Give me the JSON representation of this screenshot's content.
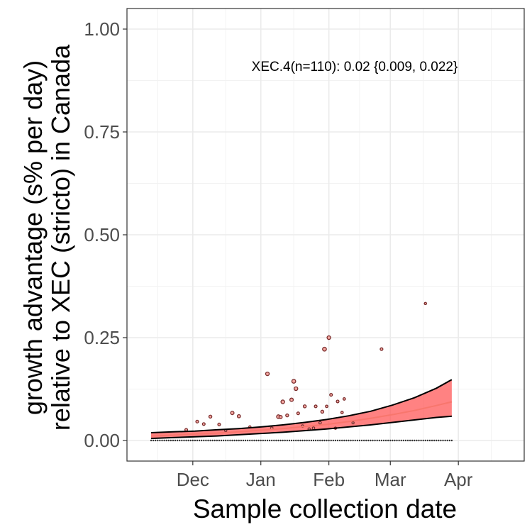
{
  "chart_data": {
    "type": "scatter",
    "title": "",
    "xlabel": "Sample collection date",
    "ylabel_lines": [
      "growth advantage (s% per day)",
      "relative to XEC (stricto) in Canada"
    ],
    "x_ticks": [
      {
        "label": "Dec",
        "date": "2024-12-01"
      },
      {
        "label": "Jan",
        "date": "2025-01-01"
      },
      {
        "label": "Feb",
        "date": "2025-02-01"
      },
      {
        "label": "Mar",
        "date": "2025-03-01"
      },
      {
        "label": "Apr",
        "date": "2025-04-01"
      }
    ],
    "xlim": [
      "2024-11-01",
      "2025-05-01"
    ],
    "ylim": [
      -0.05,
      1.05
    ],
    "y_ticks": [
      {
        "label": "0.00",
        "value": 0.0
      },
      {
        "label": "0.25",
        "value": 0.25
      },
      {
        "label": "0.50",
        "value": 0.5
      },
      {
        "label": "0.75",
        "value": 0.75
      },
      {
        "label": "1.00",
        "value": 1.0
      }
    ],
    "grid": true,
    "annotation": "XEC.4(n=110): 0.02 {0.009, 0.022}",
    "colors": {
      "fit": "#f8766d",
      "band": "#ff4d4d",
      "point_edge": "#7a2e2e",
      "point_fill": "#f4a6a0"
    },
    "fit_line": [
      {
        "date": "2024-11-12",
        "y": 0.011
      },
      {
        "date": "2024-11-22",
        "y": 0.013
      },
      {
        "date": "2024-12-02",
        "y": 0.016
      },
      {
        "date": "2024-12-12",
        "y": 0.018
      },
      {
        "date": "2024-12-22",
        "y": 0.021
      },
      {
        "date": "2025-01-01",
        "y": 0.025
      },
      {
        "date": "2025-01-11",
        "y": 0.029
      },
      {
        "date": "2025-01-21",
        "y": 0.034
      },
      {
        "date": "2025-01-31",
        "y": 0.039
      },
      {
        "date": "2025-02-10",
        "y": 0.046
      },
      {
        "date": "2025-02-20",
        "y": 0.054
      },
      {
        "date": "2025-03-02",
        "y": 0.063
      },
      {
        "date": "2025-03-12",
        "y": 0.073
      },
      {
        "date": "2025-03-22",
        "y": 0.085
      },
      {
        "date": "2025-03-29",
        "y": 0.094
      }
    ],
    "ci_upper": [
      {
        "date": "2024-11-12",
        "y": 0.019
      },
      {
        "date": "2024-11-22",
        "y": 0.021
      },
      {
        "date": "2024-12-02",
        "y": 0.023
      },
      {
        "date": "2024-12-12",
        "y": 0.026
      },
      {
        "date": "2024-12-22",
        "y": 0.029
      },
      {
        "date": "2025-01-01",
        "y": 0.033
      },
      {
        "date": "2025-01-11",
        "y": 0.038
      },
      {
        "date": "2025-01-21",
        "y": 0.044
      },
      {
        "date": "2025-01-31",
        "y": 0.051
      },
      {
        "date": "2025-02-10",
        "y": 0.06
      },
      {
        "date": "2025-02-20",
        "y": 0.071
      },
      {
        "date": "2025-03-02",
        "y": 0.086
      },
      {
        "date": "2025-03-12",
        "y": 0.104
      },
      {
        "date": "2025-03-22",
        "y": 0.127
      },
      {
        "date": "2025-03-29",
        "y": 0.148
      }
    ],
    "ci_lower": [
      {
        "date": "2024-11-12",
        "y": 0.005
      },
      {
        "date": "2024-11-22",
        "y": 0.007
      },
      {
        "date": "2024-12-02",
        "y": 0.009
      },
      {
        "date": "2024-12-12",
        "y": 0.011
      },
      {
        "date": "2024-12-22",
        "y": 0.014
      },
      {
        "date": "2025-01-01",
        "y": 0.017
      },
      {
        "date": "2025-01-11",
        "y": 0.02
      },
      {
        "date": "2025-01-21",
        "y": 0.024
      },
      {
        "date": "2025-01-31",
        "y": 0.028
      },
      {
        "date": "2025-02-10",
        "y": 0.033
      },
      {
        "date": "2025-02-20",
        "y": 0.038
      },
      {
        "date": "2025-03-02",
        "y": 0.044
      },
      {
        "date": "2025-03-12",
        "y": 0.05
      },
      {
        "date": "2025-03-22",
        "y": 0.056
      },
      {
        "date": "2025-03-29",
        "y": 0.059
      }
    ],
    "points": [
      {
        "date": "2024-11-28",
        "y": 0.026,
        "size": 1.2
      },
      {
        "date": "2024-12-03",
        "y": 0.046,
        "size": 1.2
      },
      {
        "date": "2024-12-06",
        "y": 0.04,
        "size": 1.2
      },
      {
        "date": "2024-12-09",
        "y": 0.058,
        "size": 1.3
      },
      {
        "date": "2024-12-13",
        "y": 0.039,
        "size": 1.2
      },
      {
        "date": "2024-12-16",
        "y": 0.024,
        "size": 1.0
      },
      {
        "date": "2024-12-19",
        "y": 0.067,
        "size": 1.5
      },
      {
        "date": "2024-12-22",
        "y": 0.059,
        "size": 1.4
      },
      {
        "date": "2024-12-27",
        "y": 0.033,
        "size": 1.0
      },
      {
        "date": "2025-01-04",
        "y": 0.162,
        "size": 1.6
      },
      {
        "date": "2025-01-06",
        "y": 0.03,
        "size": 1.1
      },
      {
        "date": "2025-01-09",
        "y": 0.058,
        "size": 1.6
      },
      {
        "date": "2025-01-10",
        "y": 0.057,
        "size": 1.4
      },
      {
        "date": "2025-01-11",
        "y": 0.094,
        "size": 1.6
      },
      {
        "date": "2025-01-13",
        "y": 0.061,
        "size": 1.3
      },
      {
        "date": "2025-01-15",
        "y": 0.099,
        "size": 1.5
      },
      {
        "date": "2025-01-16",
        "y": 0.144,
        "size": 1.7
      },
      {
        "date": "2025-01-17",
        "y": 0.126,
        "size": 1.6
      },
      {
        "date": "2025-01-18",
        "y": 0.066,
        "size": 1.2
      },
      {
        "date": "2025-01-20",
        "y": 0.035,
        "size": 1.1
      },
      {
        "date": "2025-01-21",
        "y": 0.083,
        "size": 1.3
      },
      {
        "date": "2025-01-23",
        "y": 0.028,
        "size": 1.0
      },
      {
        "date": "2025-01-25",
        "y": 0.03,
        "size": 1.1
      },
      {
        "date": "2025-01-26",
        "y": 0.083,
        "size": 1.2
      },
      {
        "date": "2025-01-28",
        "y": 0.043,
        "size": 1.1
      },
      {
        "date": "2025-01-29",
        "y": 0.07,
        "size": 1.3
      },
      {
        "date": "2025-01-30",
        "y": 0.222,
        "size": 1.7
      },
      {
        "date": "2025-01-31",
        "y": 0.083,
        "size": 1.1
      },
      {
        "date": "2025-02-01",
        "y": 0.25,
        "size": 1.6
      },
      {
        "date": "2025-02-02",
        "y": 0.111,
        "size": 1.2
      },
      {
        "date": "2025-02-04",
        "y": 0.03,
        "size": 1.0
      },
      {
        "date": "2025-02-05",
        "y": 0.095,
        "size": 1.2
      },
      {
        "date": "2025-02-07",
        "y": 0.068,
        "size": 1.1
      },
      {
        "date": "2025-02-08",
        "y": 0.101,
        "size": 1.1
      },
      {
        "date": "2025-02-12",
        "y": 0.043,
        "size": 1.0
      },
      {
        "date": "2025-02-25",
        "y": 0.222,
        "size": 1.2
      },
      {
        "date": "2025-03-17",
        "y": 0.333,
        "size": 1.0
      }
    ],
    "zero_points": {
      "start": "2024-11-12",
      "end": "2025-03-29",
      "step_days": 1,
      "y": 0
    }
  }
}
